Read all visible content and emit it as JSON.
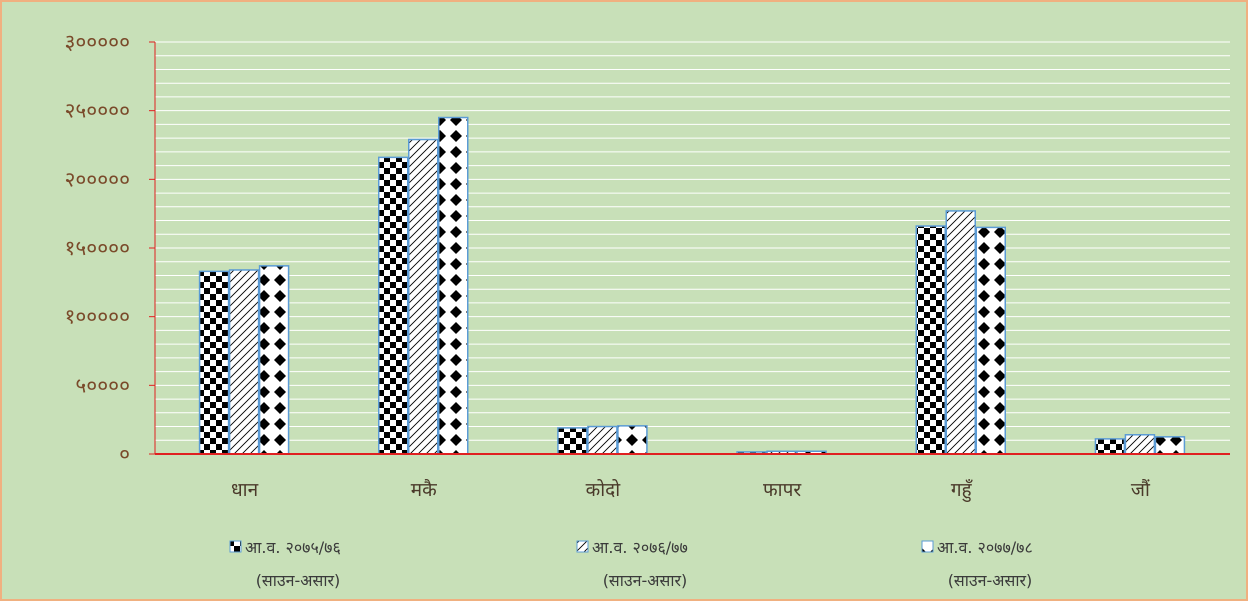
{
  "chart_data": {
    "type": "bar",
    "title": "",
    "xlabel": "",
    "ylabel": "",
    "categories": [
      "धान",
      "मकै",
      "कोदो",
      "फापर",
      "गहुँ",
      "जौं"
    ],
    "ylim": [
      0,
      300000
    ],
    "yticks": [
      0,
      50000,
      100000,
      150000,
      200000,
      250000,
      300000
    ],
    "ytick_labels": [
      "०",
      "५००००",
      "१०००००",
      "१५००००",
      "२०००००",
      "२५००००",
      "३०००००"
    ],
    "grid": true,
    "legend_position": "bottom",
    "series": [
      {
        "name": "आ.व. २०७५/७६ (साउन-असार)",
        "label_line1": "आ.व. २०७५/७६",
        "label_line2": "(साउन-असार)",
        "pattern": "checker",
        "values": [
          133000,
          216000,
          19000,
          1500,
          166000,
          11000
        ]
      },
      {
        "name": "आ.व. २०७६/७७ (साउन-असार)",
        "label_line1": "आ.व. २०७६/७७",
        "label_line2": "(साउन-असार)",
        "pattern": "diagonal",
        "values": [
          134000,
          229000,
          20000,
          2000,
          177000,
          14000
        ]
      },
      {
        "name": "आ.व. २०७७/७८ (साउन-असार)",
        "label_line1": "आ.व. २०७७/७८",
        "label_line2": "(साउन-असार)",
        "pattern": "diamond",
        "values": [
          137000,
          245000,
          20500,
          2000,
          165000,
          12500
        ]
      }
    ]
  },
  "colors": {
    "plot_background": "#c8e0b8",
    "border": "#f0b080",
    "axis": "#e02020",
    "gridline": "#ffffff",
    "bar_outline": "#5b9bd5"
  }
}
